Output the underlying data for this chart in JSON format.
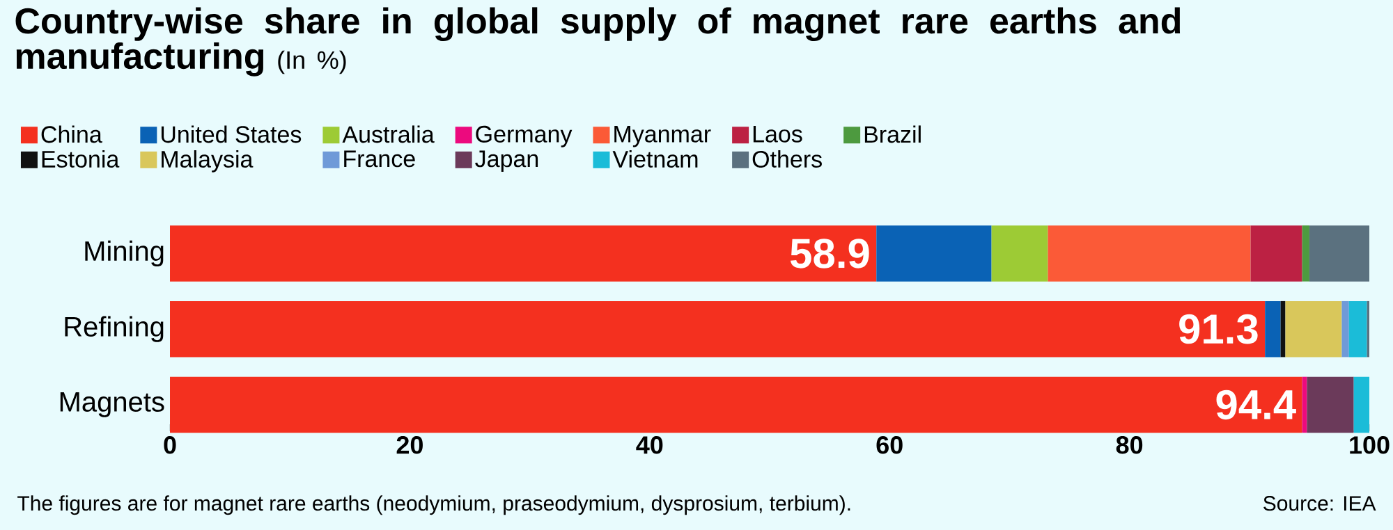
{
  "chart_data": {
    "type": "bar",
    "orientation": "horizontal",
    "stacked": true,
    "title": "Country-wise share in global supply of magnet rare earths and manufacturing",
    "subtitle": "(In %)",
    "categories": [
      "Mining",
      "Refining",
      "Magnets"
    ],
    "series": [
      {
        "name": "China",
        "color": "#f4301f",
        "values": [
          58.9,
          91.3,
          94.4
        ],
        "value_labels": [
          "58.9",
          "91.3",
          "94.4"
        ]
      },
      {
        "name": "United States",
        "color": "#0a62b5",
        "values": [
          9.6,
          1.3,
          null
        ]
      },
      {
        "name": "Australia",
        "color": "#9dcb35",
        "values": [
          4.7,
          null,
          null
        ]
      },
      {
        "name": "Germany",
        "color": "#ec0a7e",
        "values": [
          null,
          null,
          0.4
        ]
      },
      {
        "name": "Myanmar",
        "color": "#fb5a37",
        "values": [
          16.9,
          null,
          null
        ]
      },
      {
        "name": "Laos",
        "color": "#bc2143",
        "values": [
          4.3,
          null,
          null
        ]
      },
      {
        "name": "Brazil",
        "color": "#4d9a3f",
        "values": [
          0.6,
          null,
          null
        ]
      },
      {
        "name": "Estonia",
        "color": "#111111",
        "values": [
          null,
          0.4,
          null
        ]
      },
      {
        "name": "Malaysia",
        "color": "#d9c75b",
        "values": [
          null,
          4.7,
          null
        ]
      },
      {
        "name": "France",
        "color": "#6f9ad8",
        "values": [
          null,
          0.6,
          null
        ]
      },
      {
        "name": "Japan",
        "color": "#6b3a5a",
        "values": [
          null,
          null,
          3.9
        ]
      },
      {
        "name": "Vietnam",
        "color": "#1bbcd8",
        "values": [
          null,
          1.5,
          1.3
        ]
      },
      {
        "name": "Others",
        "color": "#5b717f",
        "values": [
          5.0,
          0.2,
          null
        ]
      }
    ],
    "xlim": [
      0,
      100
    ],
    "xticks": [
      0,
      20,
      40,
      60,
      80,
      100
    ],
    "legend": "top",
    "grid": false,
    "annotations": [
      "The figures are for magnet rare earths (neodymium, praseodymium, dysprosium, terbium).",
      "Source: IEA"
    ]
  }
}
